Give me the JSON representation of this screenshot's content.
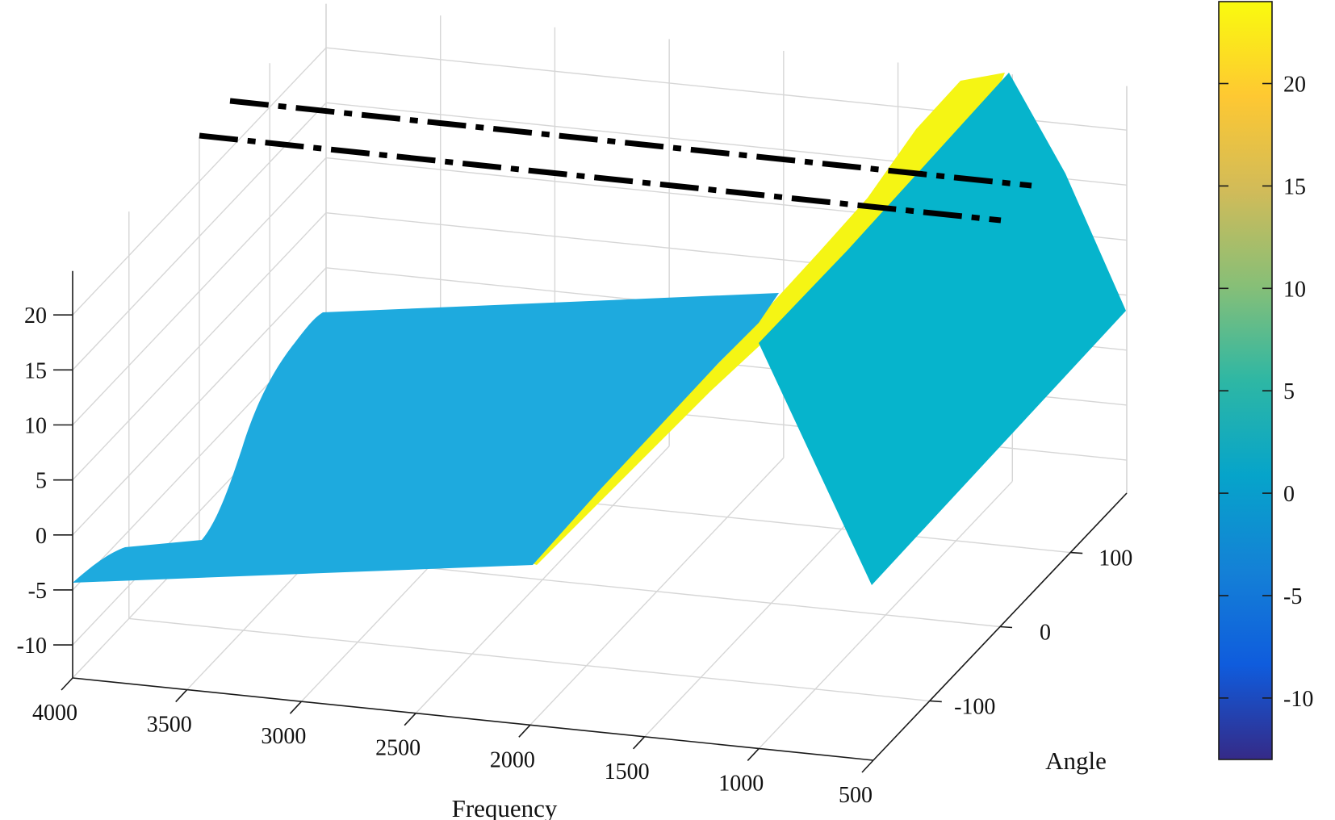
{
  "chart_data": {
    "type": "surface",
    "title": "",
    "xlabel": "Frequency",
    "ylabel": "Angle",
    "zlabel": "",
    "x_axis": {
      "ticks": [
        500,
        1000,
        1500,
        2000,
        2500,
        3000,
        3500,
        4000
      ],
      "tick_labels": [
        "500",
        "1000",
        "1500",
        "2000",
        "2500",
        "3000",
        "3500",
        "4000"
      ],
      "range": [
        500,
        4000
      ]
    },
    "y_axis": {
      "ticks": [
        -100,
        0,
        100
      ],
      "tick_labels": [
        "-100",
        "0",
        "100"
      ],
      "range": [
        -180,
        180
      ]
    },
    "z_axis": {
      "ticks": [
        -10,
        -5,
        0,
        5,
        10,
        15,
        20
      ],
      "tick_labels": [
        "-10",
        "-5",
        "0",
        "5",
        "10",
        "15",
        "20"
      ],
      "range": [
        -13,
        24
      ]
    },
    "colorbar": {
      "ticks": [
        -10,
        -5,
        0,
        5,
        10,
        15,
        20
      ],
      "tick_labels": [
        "-10",
        "-5",
        "0",
        "5",
        "10",
        "15",
        "20"
      ],
      "range": [
        -13,
        24
      ],
      "colormap": "parula",
      "colors": [
        "#352a87",
        "#0f5cdd",
        "#1481d6",
        "#06a4ca",
        "#2eb7a4",
        "#87bf77",
        "#d1bb59",
        "#fec832",
        "#f9fb0e"
      ]
    },
    "surfaces": [
      {
        "region": "front face",
        "color": "#1eaade",
        "value_level": 2
      },
      {
        "region": "ridge edge",
        "color": "#f5f514",
        "value_level": 24
      },
      {
        "region": "right face",
        "color": "#06b4cc",
        "value_level": 3
      }
    ],
    "reference_lines": [
      {
        "style": "dash-dot",
        "color": "#000000"
      },
      {
        "style": "dash-dot",
        "color": "#000000"
      }
    ],
    "grid": true
  }
}
